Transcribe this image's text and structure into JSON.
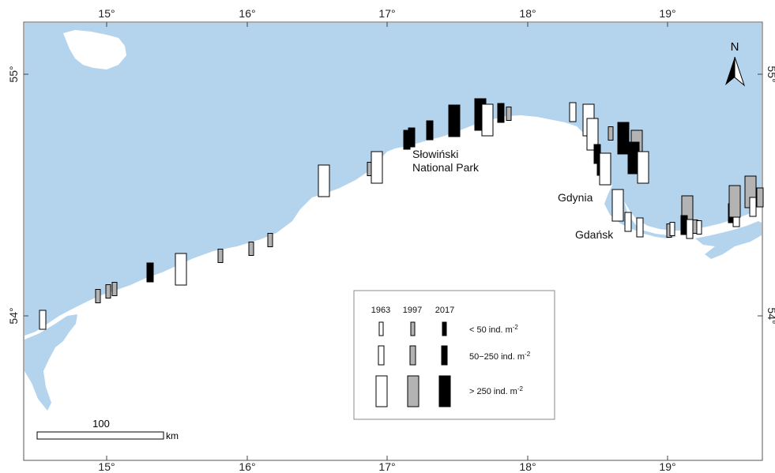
{
  "map": {
    "top_ticks": [
      "15°",
      "16°",
      "17°",
      "18°",
      "19°"
    ],
    "bottom_ticks": [
      "15°",
      "16°",
      "17°",
      "18°",
      "19°"
    ],
    "left_ticks": [
      "55°",
      "54°"
    ],
    "right_ticks": [
      "55°",
      "54°"
    ],
    "places": {
      "park_line1": "Słowiński",
      "park_line2": "National Park",
      "gdynia": "Gdynia",
      "gdansk": "Gdańsk"
    },
    "north_label": "N",
    "scale": {
      "value": "100",
      "unit": "km"
    },
    "colors": {
      "sea": "#b4d4ee",
      "land": "#ffffff",
      "y1963": "#ffffff",
      "y1997": "#b3b3b3",
      "y2017": "#000000"
    }
  },
  "legend": {
    "years": [
      "1963",
      "1997",
      "2017"
    ],
    "classes": [
      {
        "label": "< 50 ind. m",
        "sup": "-2"
      },
      {
        "label": "50−250 ind. m",
        "sup": "-2"
      },
      {
        "label": "> 250 ind. m",
        "sup": "-2"
      }
    ]
  }
}
